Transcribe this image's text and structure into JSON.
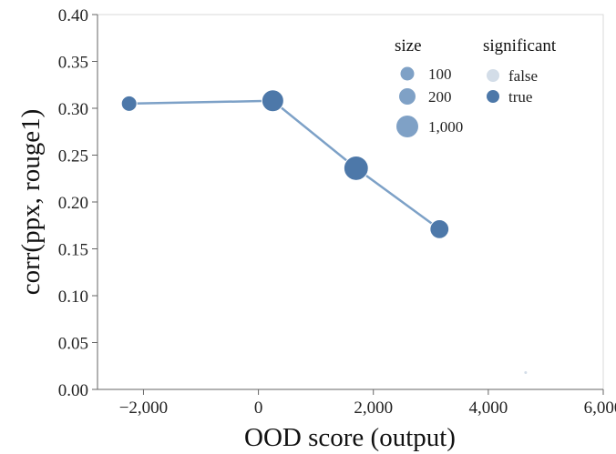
{
  "chart_data": {
    "type": "scatter",
    "xlabel": "OOD score (output)",
    "ylabel": "corr(ppx, rouge1)",
    "xlim": [
      -2800,
      6000
    ],
    "ylim": [
      0,
      0.4
    ],
    "x_ticks": [
      -2000,
      0,
      2000,
      4000,
      6000
    ],
    "x_tick_labels": [
      "−2,000",
      "0",
      "2,000",
      "4,000",
      "6,000"
    ],
    "y_ticks": [
      0,
      0.05,
      0.1,
      0.15,
      0.2,
      0.25,
      0.3,
      0.35,
      0.4
    ],
    "y_tick_labels": [
      "0.00",
      "0.05",
      "0.10",
      "0.15",
      "0.20",
      "0.25",
      "0.30",
      "0.35",
      "0.40"
    ],
    "grid": false,
    "line": {
      "connects_significant": true,
      "color": "#7da1c7"
    },
    "points": [
      {
        "x": -2250,
        "y": 0.305,
        "size": 200,
        "significant": true
      },
      {
        "x": 250,
        "y": 0.308,
        "size": 400,
        "significant": true
      },
      {
        "x": 1700,
        "y": 0.236,
        "size": 500,
        "significant": true
      },
      {
        "x": 3150,
        "y": 0.171,
        "size": 300,
        "significant": true
      },
      {
        "x": 4650,
        "y": 0.018,
        "size": 1,
        "significant": false
      }
    ],
    "colors": {
      "significant_true": "#4d78a9",
      "significant_false": "#d3dde8",
      "size_legend": "#7fa1c6"
    },
    "legend": {
      "placement": "top-right",
      "size": {
        "title": "size",
        "items": [
          {
            "label": "100",
            "value": 100
          },
          {
            "label": "200",
            "value": 200
          },
          {
            "label": "1,000",
            "value": 1000
          }
        ]
      },
      "significant": {
        "title": "significant",
        "items": [
          {
            "label": "false",
            "value": false
          },
          {
            "label": "true",
            "value": true
          }
        ]
      }
    }
  }
}
